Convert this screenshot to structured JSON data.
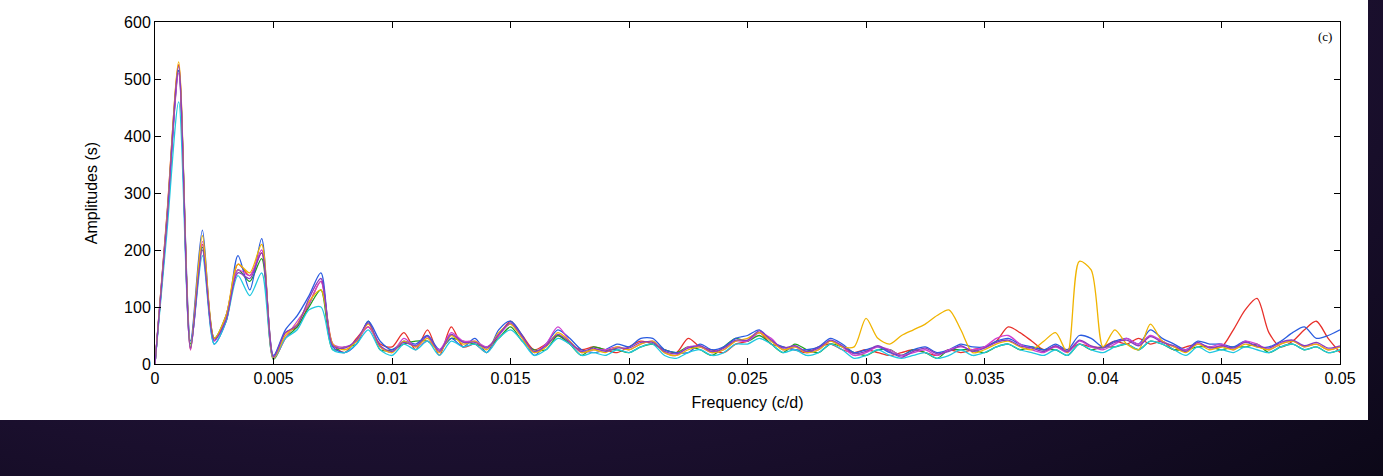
{
  "chart_data": {
    "type": "line",
    "x_label": "Frequency (c/d)",
    "y_label": "Amplitudes (s)",
    "annotations": [
      {
        "text": "(c)"
      }
    ],
    "xlim": [
      0,
      0.05
    ],
    "xticks": [
      0,
      0.005,
      0.01,
      0.015,
      0.02,
      0.025,
      0.03,
      0.035,
      0.04,
      0.045,
      0.05
    ],
    "ylim": [
      0,
      600
    ],
    "yticks": [
      0,
      100,
      200,
      300,
      400,
      500,
      600
    ],
    "grid": false,
    "x": [
      0,
      0.0005,
      0.001,
      0.0015,
      0.002,
      0.0025,
      0.003,
      0.0035,
      0.004,
      0.0045,
      0.005,
      0.0055,
      0.006,
      0.0065,
      0.007,
      0.0075,
      0.008,
      0.0085,
      0.009,
      0.0095,
      0.01,
      0.0105,
      0.011,
      0.0115,
      0.012,
      0.0125,
      0.013,
      0.0135,
      0.014,
      0.0145,
      0.015,
      0.0155,
      0.016,
      0.0165,
      0.017,
      0.0175,
      0.018,
      0.0185,
      0.019,
      0.0195,
      0.02,
      0.0205,
      0.021,
      0.0215,
      0.022,
      0.0225,
      0.023,
      0.0235,
      0.024,
      0.0245,
      0.025,
      0.0255,
      0.026,
      0.0265,
      0.027,
      0.0275,
      0.028,
      0.0285,
      0.029,
      0.0295,
      0.03,
      0.0305,
      0.031,
      0.0315,
      0.032,
      0.0325,
      0.033,
      0.0335,
      0.034,
      0.0345,
      0.035,
      0.0355,
      0.036,
      0.0365,
      0.037,
      0.0375,
      0.038,
      0.0385,
      0.039,
      0.0395,
      0.04,
      0.0405,
      0.041,
      0.0415,
      0.042,
      0.0425,
      0.043,
      0.0435,
      0.044,
      0.0445,
      0.045,
      0.0455,
      0.046,
      0.0465,
      0.047,
      0.0475,
      0.048,
      0.0485,
      0.049,
      0.0495,
      0.05
    ],
    "series": [
      {
        "color": "#e8302a",
        "values": [
          0,
          260,
          525,
          25,
          210,
          45,
          75,
          175,
          155,
          195,
          12,
          55,
          65,
          105,
          145,
          35,
          20,
          45,
          65,
          35,
          30,
          55,
          25,
          60,
          15,
          65,
          30,
          35,
          20,
          50,
          75,
          50,
          25,
          35,
          50,
          35,
          25,
          30,
          25,
          20,
          30,
          40,
          35,
          25,
          20,
          45,
          30,
          25,
          20,
          35,
          40,
          55,
          35,
          30,
          25,
          20,
          30,
          35,
          25,
          20,
          25,
          20,
          15,
          20,
          25,
          20,
          15,
          25,
          20,
          25,
          30,
          40,
          65,
          55,
          40,
          25,
          30,
          25,
          35,
          30,
          30,
          40,
          35,
          45,
          35,
          40,
          25,
          30,
          35,
          30,
          30,
          60,
          95,
          115,
          55,
          30,
          40,
          60,
          75,
          45,
          20
        ]
      },
      {
        "color": "#1fa01f",
        "values": [
          0,
          245,
          515,
          35,
          205,
          45,
          85,
          165,
          145,
          185,
          8,
          45,
          65,
          100,
          130,
          25,
          30,
          35,
          75,
          25,
          25,
          35,
          40,
          40,
          25,
          45,
          40,
          35,
          30,
          45,
          65,
          40,
          25,
          25,
          50,
          35,
          15,
          30,
          25,
          25,
          20,
          30,
          35,
          25,
          20,
          30,
          25,
          15,
          30,
          45,
          40,
          50,
          35,
          20,
          35,
          25,
          20,
          35,
          30,
          20,
          15,
          25,
          25,
          15,
          25,
          20,
          10,
          25,
          25,
          25,
          20,
          30,
          35,
          25,
          30,
          25,
          25,
          15,
          35,
          25,
          30,
          30,
          35,
          25,
          40,
          35,
          25,
          25,
          30,
          30,
          25,
          30,
          30,
          35,
          20,
          30,
          35,
          25,
          30,
          20,
          25
        ]
      },
      {
        "color": "#2a5ce0",
        "values": [
          0,
          255,
          515,
          40,
          235,
          35,
          75,
          190,
          130,
          220,
          15,
          60,
          85,
          120,
          160,
          30,
          20,
          35,
          75,
          40,
          25,
          40,
          35,
          50,
          25,
          45,
          30,
          45,
          20,
          60,
          75,
          50,
          15,
          35,
          60,
          45,
          25,
          20,
          25,
          35,
          30,
          45,
          45,
          25,
          20,
          20,
          35,
          25,
          30,
          45,
          50,
          60,
          40,
          30,
          25,
          25,
          30,
          45,
          35,
          20,
          25,
          30,
          20,
          15,
          25,
          30,
          20,
          25,
          35,
          30,
          30,
          40,
          45,
          35,
          30,
          25,
          35,
          25,
          50,
          45,
          30,
          40,
          45,
          35,
          60,
          45,
          35,
          25,
          40,
          35,
          35,
          30,
          40,
          30,
          30,
          40,
          55,
          65,
          45,
          50,
          60
        ]
      },
      {
        "color": "#d040d0",
        "values": [
          0,
          250,
          510,
          25,
          215,
          40,
          85,
          165,
          155,
          200,
          10,
          45,
          75,
          105,
          145,
          35,
          30,
          40,
          65,
          30,
          20,
          45,
          30,
          40,
          25,
          55,
          40,
          40,
          30,
          50,
          70,
          45,
          20,
          35,
          65,
          40,
          20,
          25,
          25,
          30,
          25,
          35,
          40,
          20,
          15,
          30,
          30,
          20,
          25,
          40,
          40,
          55,
          45,
          25,
          30,
          20,
          25,
          40,
          30,
          15,
          20,
          30,
          25,
          15,
          20,
          25,
          15,
          25,
          30,
          25,
          30,
          45,
          50,
          35,
          25,
          20,
          30,
          20,
          40,
          30,
          25,
          35,
          45,
          35,
          50,
          40,
          30,
          25,
          35,
          30,
          35,
          25,
          40,
          35,
          25,
          35,
          40,
          30,
          35,
          25,
          30
        ]
      },
      {
        "color": "#20c8e0",
        "values": [
          0,
          230,
          460,
          30,
          190,
          35,
          75,
          155,
          120,
          160,
          10,
          45,
          60,
          95,
          100,
          25,
          20,
          35,
          60,
          25,
          15,
          35,
          25,
          40,
          15,
          40,
          30,
          35,
          20,
          45,
          60,
          40,
          15,
          25,
          45,
          35,
          15,
          20,
          15,
          25,
          20,
          30,
          35,
          15,
          10,
          20,
          25,
          15,
          20,
          35,
          35,
          45,
          35,
          20,
          25,
          15,
          20,
          35,
          25,
          10,
          15,
          25,
          15,
          10,
          15,
          20,
          10,
          15,
          25,
          15,
          20,
          30,
          35,
          25,
          20,
          15,
          25,
          15,
          35,
          25,
          20,
          30,
          35,
          25,
          40,
          35,
          25,
          15,
          30,
          20,
          25,
          20,
          30,
          25,
          20,
          30,
          35,
          25,
          30,
          20,
          25
        ]
      },
      {
        "color": "#f0b400",
        "values": [
          0,
          255,
          530,
          30,
          225,
          45,
          85,
          175,
          160,
          210,
          10,
          50,
          70,
          110,
          130,
          35,
          25,
          40,
          70,
          30,
          20,
          40,
          30,
          45,
          20,
          50,
          35,
          40,
          25,
          55,
          70,
          45,
          20,
          30,
          55,
          40,
          20,
          25,
          20,
          30,
          25,
          35,
          40,
          20,
          15,
          25,
          30,
          20,
          25,
          40,
          45,
          55,
          40,
          25,
          30,
          20,
          25,
          40,
          30,
          30,
          80,
          45,
          35,
          50,
          60,
          70,
          85,
          95,
          60,
          20,
          25,
          35,
          40,
          30,
          25,
          40,
          55,
          20,
          180,
          165,
          30,
          60,
          35,
          25,
          70,
          40,
          30,
          20,
          35,
          25,
          30,
          25,
          35,
          30,
          25,
          35,
          40,
          30,
          35,
          25,
          30
        ]
      },
      {
        "color": "#8a3cc0",
        "values": [
          0,
          248,
          522,
          28,
          200,
          42,
          78,
          160,
          150,
          195,
          12,
          55,
          68,
          115,
          150,
          32,
          28,
          42,
          72,
          32,
          22,
          38,
          32,
          48,
          22,
          52,
          38,
          38,
          28,
          52,
          72,
          48,
          22,
          32,
          52,
          38,
          22,
          28,
          22,
          28,
          28,
          38,
          38,
          22,
          18,
          28,
          32,
          22,
          28,
          42,
          42,
          58,
          42,
          28,
          32,
          22,
          28,
          42,
          32,
          18,
          22,
          32,
          22,
          12,
          22,
          28,
          18,
          22,
          32,
          22,
          28,
          38,
          42,
          32,
          28,
          22,
          32,
          22,
          42,
          32,
          28,
          38,
          42,
          32,
          48,
          38,
          32,
          22,
          38,
          28,
          32,
          28,
          38,
          32,
          28,
          38,
          42,
          32,
          38,
          28,
          32
        ]
      }
    ]
  }
}
